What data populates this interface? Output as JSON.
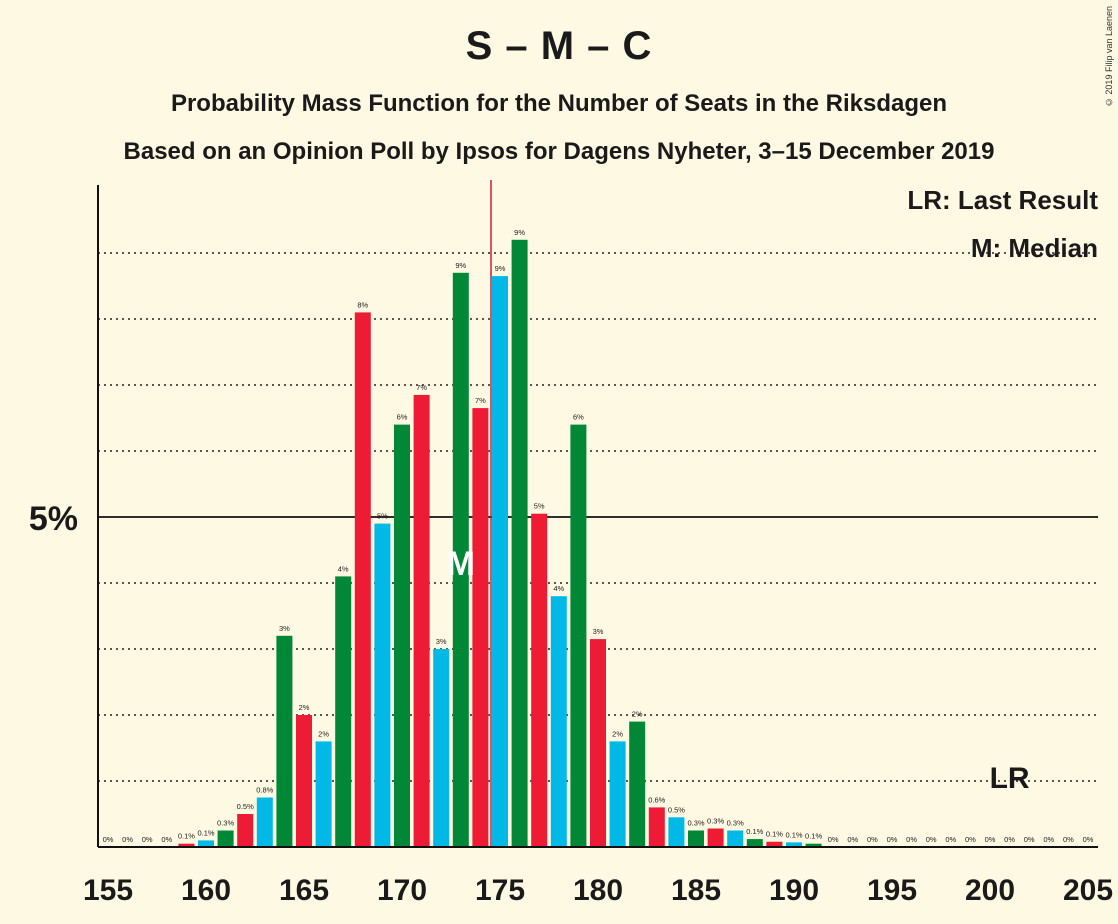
{
  "title": "S – M – C",
  "subtitle1": "Probability Mass Function for the Number of Seats in the Riksdagen",
  "subtitle2": "Based on an Opinion Poll by Ipsos for Dagens Nyheter, 3–15 December 2019",
  "copyright": "© 2019 Filip van Laenen",
  "legend": {
    "lr": "LR: Last Result",
    "median": "M: Median"
  },
  "marker_labels": {
    "median": "M",
    "last_result": "LR"
  },
  "colors": {
    "background": "#fef9e3",
    "red": "#ed1b34",
    "blue": "#00b9e6",
    "green": "#008837"
  },
  "chart_data": {
    "type": "bar",
    "x": [
      155,
      156,
      157,
      158,
      159,
      160,
      161,
      162,
      163,
      164,
      165,
      166,
      167,
      168,
      169,
      170,
      171,
      172,
      173,
      174,
      175,
      176,
      177,
      178,
      179,
      180,
      181,
      182,
      183,
      184,
      185,
      186,
      187,
      188,
      189,
      190,
      191,
      192,
      193,
      194,
      195,
      196,
      197,
      198,
      199,
      200,
      201,
      202,
      203,
      204,
      205
    ],
    "values": [
      0,
      0,
      0,
      0,
      0.05,
      0.1,
      0.25,
      0.5,
      0.75,
      3.2,
      2.0,
      1.6,
      4.1,
      8.1,
      4.9,
      6.4,
      6.85,
      3.0,
      8.7,
      6.65,
      8.65,
      9.2,
      5.05,
      3.8,
      6.4,
      3.15,
      1.6,
      1.9,
      0.6,
      0.45,
      0.25,
      0.28,
      0.25,
      0.12,
      0.08,
      0.07,
      0.05,
      0,
      0,
      0,
      0,
      0,
      0,
      0,
      0,
      0,
      0,
      0,
      0,
      0,
      0
    ],
    "labels": [
      "0%",
      "0%",
      "0%",
      "0%",
      "0.1%",
      "0.1%",
      "0.3%",
      "0.5%",
      "0.8%",
      "3%",
      "2%",
      "2%",
      "4%",
      "8%",
      "5%",
      "6%",
      "7%",
      "3%",
      "9%",
      "7%",
      "9%",
      "9%",
      "5%",
      "4%",
      "6%",
      "3%",
      "2%",
      "2%",
      "0.6%",
      "0.5%",
      "0.3%",
      "0.3%",
      "0.3%",
      "0.1%",
      "0.1%",
      "0.1%",
      "0.1%",
      "0%",
      "0%",
      "0%",
      "0%",
      "0%",
      "0%",
      "0%",
      "0%",
      "0%",
      "0%",
      "0%",
      "0%",
      "0%",
      "0%"
    ],
    "xticks": [
      155,
      160,
      165,
      170,
      175,
      180,
      185,
      190,
      195,
      200,
      205
    ],
    "ytick_label": "5%",
    "ytick_value": 5,
    "ylim": [
      0,
      10
    ],
    "median_seat": 173,
    "last_result_seat": 201,
    "majority_line_seat": 175,
    "gridlines": [
      1,
      2,
      3,
      4,
      5,
      6,
      7,
      8,
      9
    ]
  }
}
